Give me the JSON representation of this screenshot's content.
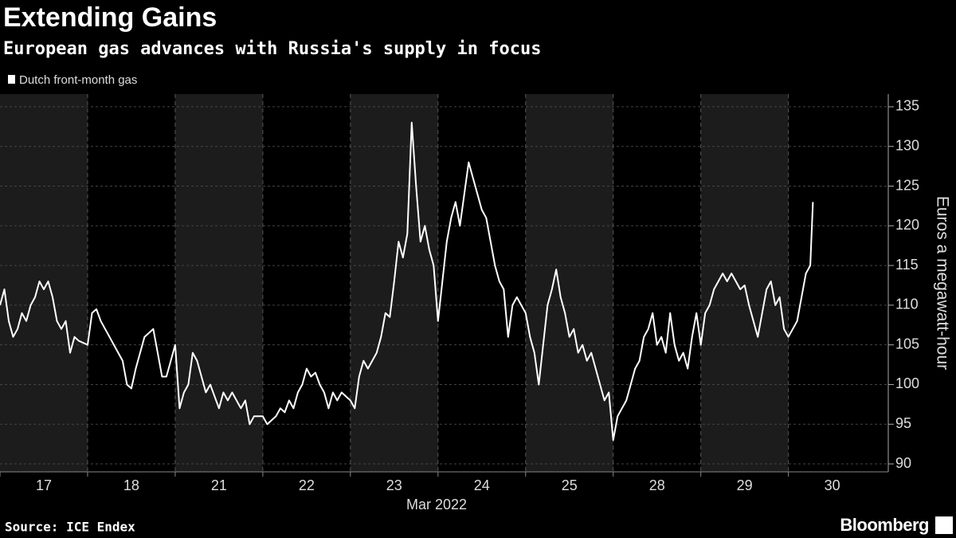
{
  "chart_data": {
    "type": "line",
    "title": "Extending Gains",
    "subtitle": "European gas advances with Russia's supply in focus",
    "x_label": "Mar 2022",
    "y_label": "Euros a megawatt-hour",
    "source": "Source: ICE Endex",
    "brand": "Bloomberg",
    "xlim": [
      0,
      10.14
    ],
    "xticks": [
      {
        "value": 0.5,
        "label": "17"
      },
      {
        "value": 1.5,
        "label": "18"
      },
      {
        "value": 2.5,
        "label": "21"
      },
      {
        "value": 3.5,
        "label": "22"
      },
      {
        "value": 4.5,
        "label": "23"
      },
      {
        "value": 5.5,
        "label": "24"
      },
      {
        "value": 6.5,
        "label": "25"
      },
      {
        "value": 7.5,
        "label": "28"
      },
      {
        "value": 8.5,
        "label": "29"
      },
      {
        "value": 9.5,
        "label": "30"
      }
    ],
    "ylim": [
      89,
      136.6
    ],
    "yticks": [
      90,
      95,
      100,
      105,
      110,
      115,
      120,
      125,
      130,
      135
    ],
    "grid": true,
    "legend": "top-left",
    "x": [
      0,
      0.05,
      0.1,
      0.15,
      0.2,
      0.25,
      0.3,
      0.35,
      0.4,
      0.45,
      0.5,
      0.55,
      0.6,
      0.65,
      0.7,
      0.75,
      0.8,
      0.85,
      0.9,
      1.0,
      1.05,
      1.1,
      1.15,
      1.2,
      1.25,
      1.3,
      1.35,
      1.4,
      1.45,
      1.5,
      1.55,
      1.6,
      1.65,
      1.7,
      1.75,
      1.8,
      1.85,
      1.9,
      2.0,
      2.05,
      2.1,
      2.15,
      2.2,
      2.25,
      2.3,
      2.35,
      2.4,
      2.5,
      2.55,
      2.6,
      2.65,
      2.7,
      2.75,
      2.8,
      2.85,
      2.9,
      3.0,
      3.05,
      3.1,
      3.15,
      3.2,
      3.25,
      3.3,
      3.35,
      3.4,
      3.45,
      3.5,
      3.55,
      3.6,
      3.65,
      3.7,
      3.75,
      3.8,
      3.85,
      3.9,
      4.0,
      4.05,
      4.1,
      4.15,
      4.2,
      4.25,
      4.3,
      4.35,
      4.4,
      4.45,
      4.5,
      4.55,
      4.6,
      4.65,
      4.7,
      4.75,
      4.8,
      4.85,
      4.9,
      4.95,
      5.0,
      5.05,
      5.1,
      5.15,
      5.2,
      5.25,
      5.3,
      5.35,
      5.4,
      5.45,
      5.5,
      5.55,
      5.6,
      5.65,
      5.7,
      5.75,
      5.8,
      5.85,
      5.9,
      6.0,
      6.05,
      6.1,
      6.15,
      6.2,
      6.25,
      6.3,
      6.35,
      6.4,
      6.45,
      6.5,
      6.55,
      6.6,
      6.65,
      6.7,
      6.75,
      6.8,
      6.85,
      6.9,
      6.95,
      7.0,
      7.05,
      7.1,
      7.15,
      7.2,
      7.25,
      7.3,
      7.35,
      7.4,
      7.45,
      7.5,
      7.55,
      7.6,
      7.65,
      7.7,
      7.75,
      7.8,
      7.85,
      7.9,
      7.95,
      8.0,
      8.05,
      8.1,
      8.15,
      8.2,
      8.25,
      8.3,
      8.35,
      8.4,
      8.45,
      8.5,
      8.55,
      8.6,
      8.65,
      8.7,
      8.75,
      8.8,
      8.85,
      8.9,
      8.95,
      9.0,
      9.1,
      9.15,
      9.2,
      9.25,
      9.28
    ],
    "series": [
      {
        "name": "Dutch front-month gas",
        "color": "#ffffff",
        "values": [
          110,
          112,
          108,
          106,
          107,
          109,
          108,
          110,
          111,
          113,
          112,
          113,
          111,
          108,
          107,
          108,
          104,
          106,
          105.5,
          105,
          109,
          109.5,
          108,
          107,
          106,
          105,
          104,
          103,
          100,
          99.5,
          102,
          104,
          106,
          106.5,
          107,
          104,
          101,
          101,
          105,
          97,
          99,
          100,
          104,
          103,
          101,
          99,
          100,
          97,
          99,
          98,
          99,
          98,
          97,
          98,
          95,
          96,
          96,
          95,
          95.5,
          96,
          97,
          96.5,
          98,
          97,
          99,
          100,
          102,
          101,
          101.5,
          100,
          99,
          97,
          99,
          98,
          99,
          98,
          97,
          101,
          103,
          102,
          103,
          104,
          106,
          109,
          108.5,
          113,
          118,
          116,
          119,
          133,
          125,
          118,
          120,
          117,
          115,
          108,
          113,
          118,
          121,
          123,
          120,
          124,
          128,
          126,
          124,
          122,
          121,
          118,
          115,
          113,
          112,
          106,
          110,
          111,
          109,
          106,
          104,
          100,
          105,
          110,
          112,
          114.5,
          111,
          109,
          106,
          107,
          104,
          105,
          103,
          104,
          102,
          100,
          98,
          99,
          93,
          96,
          97,
          98,
          100,
          102,
          103,
          106,
          107,
          109,
          105,
          106,
          104,
          109,
          105,
          103,
          104,
          102,
          106,
          109,
          105,
          109,
          110,
          112,
          113,
          114,
          113,
          114,
          113,
          112,
          112.5,
          110,
          108,
          106,
          109,
          112,
          113,
          110,
          111,
          107,
          106,
          108,
          111,
          114,
          115,
          123
        ]
      }
    ]
  }
}
